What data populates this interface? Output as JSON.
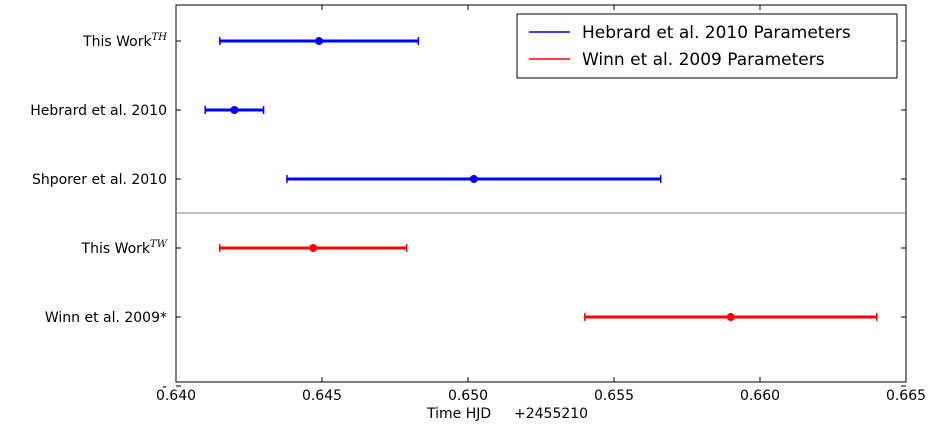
{
  "chart_data": {
    "type": "scatter",
    "subtype": "errorbar",
    "xlabel": "Time HJD",
    "x_offset_label": "+2455210",
    "xlim": [
      0.64,
      0.665
    ],
    "x_ticks": [
      "0.640",
      "0.645",
      "0.650",
      "0.655",
      "0.660",
      "0.665"
    ],
    "y_extra_tick": "-",
    "grid": false,
    "legend_position": "top-right",
    "colors": {
      "blue": "#0000ff",
      "red": "#ff0000",
      "divider": "#808080"
    },
    "series": [
      {
        "name": "Hebrard et al. 2010 Parameters",
        "color": "#0000ff"
      },
      {
        "name": "Winn et al. 2009 Parameters",
        "color": "#ff0000"
      }
    ],
    "points": [
      {
        "label": "This Work",
        "superscript": "TH",
        "series": 0,
        "value": 0.6449,
        "err_low": 0.6415,
        "err_high": 0.6483
      },
      {
        "label": "Hebrard et al. 2010",
        "superscript": "",
        "series": 0,
        "value": 0.642,
        "err_low": 0.641,
        "err_high": 0.643
      },
      {
        "label": "Shporer et al. 2010",
        "superscript": "",
        "series": 0,
        "value": 0.6502,
        "err_low": 0.6438,
        "err_high": 0.6566
      },
      {
        "label": "This Work",
        "superscript": "TW",
        "series": 1,
        "value": 0.6447,
        "err_low": 0.6415,
        "err_high": 0.6479
      },
      {
        "label": "Winn et al. 2009*",
        "superscript": "",
        "series": 1,
        "value": 0.659,
        "err_low": 0.654,
        "err_high": 0.664
      }
    ]
  }
}
